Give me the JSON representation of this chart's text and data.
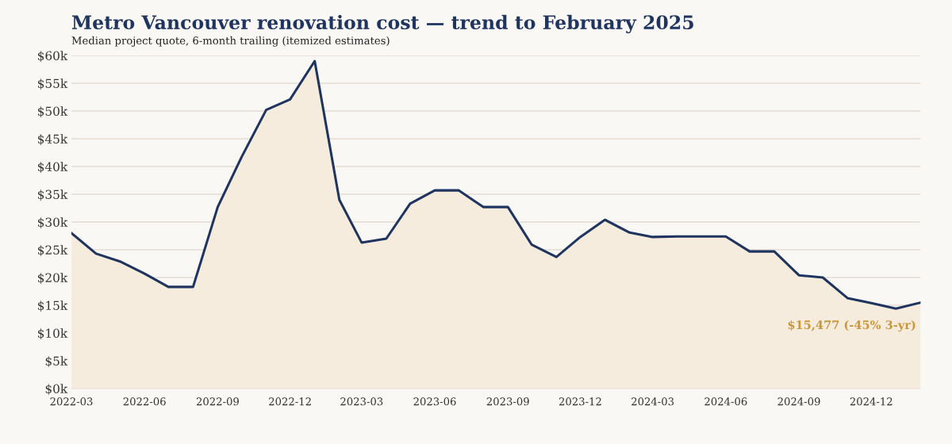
{
  "chart_data": {
    "type": "area",
    "title": "Metro Vancouver renovation cost — trend to February 2025",
    "subtitle": "Median project quote, 6-month trailing (itemized estimates)",
    "x": [
      "2022-03",
      "2022-04",
      "2022-05",
      "2022-06",
      "2022-07",
      "2022-08",
      "2022-09",
      "2022-10",
      "2022-11",
      "2022-12",
      "2023-01",
      "2023-02",
      "2023-03",
      "2023-04",
      "2023-05",
      "2023-06",
      "2023-07",
      "2023-08",
      "2023-09",
      "2023-10",
      "2023-11",
      "2023-12",
      "2024-01",
      "2024-02",
      "2024-03",
      "2024-04",
      "2024-05",
      "2024-06",
      "2024-07",
      "2024-08",
      "2024-09",
      "2024-10",
      "2024-11",
      "2024-12",
      "2025-01",
      "2025-02"
    ],
    "series": [
      {
        "color": "#1f3560",
        "values": [
          28000,
          24300,
          22900,
          20700,
          18300,
          18300,
          32700,
          41700,
          50200,
          52100,
          59000,
          34000,
          26300,
          27000,
          33300,
          35700,
          35700,
          32700,
          32700,
          25900,
          23700,
          27300,
          30400,
          28100,
          27300,
          27400,
          27400,
          27400,
          24700,
          24700,
          20400,
          20000,
          16300,
          15400,
          14400,
          15477
        ]
      }
    ],
    "xlim": [
      "2022-03",
      "2025-02"
    ],
    "xticks": [
      "2022-03",
      "2022-06",
      "2022-09",
      "2022-12",
      "2023-03",
      "2023-06",
      "2023-09",
      "2023-12",
      "2024-03",
      "2024-06",
      "2024-09",
      "2024-12"
    ],
    "ylim": [
      0,
      60000
    ],
    "yticks": [
      {
        "value": 0,
        "label": "$0k"
      },
      {
        "value": 5000,
        "label": "$5k"
      },
      {
        "value": 10000,
        "label": "$10k"
      },
      {
        "value": 15000,
        "label": "$15k"
      },
      {
        "value": 20000,
        "label": "$20k"
      },
      {
        "value": 25000,
        "label": "$25k"
      },
      {
        "value": 30000,
        "label": "$30k"
      },
      {
        "value": 35000,
        "label": "$35k"
      },
      {
        "value": 40000,
        "label": "$40k"
      },
      {
        "value": 45000,
        "label": "$45k"
      },
      {
        "value": 50000,
        "label": "$50k"
      },
      {
        "value": 55000,
        "label": "$55k"
      },
      {
        "value": 60000,
        "label": "$60k"
      }
    ],
    "grid": "y",
    "annotations": [
      {
        "text": "$15,477 (-45% 3-yr)",
        "x": "2025-02",
        "y": 15477
      }
    ]
  }
}
